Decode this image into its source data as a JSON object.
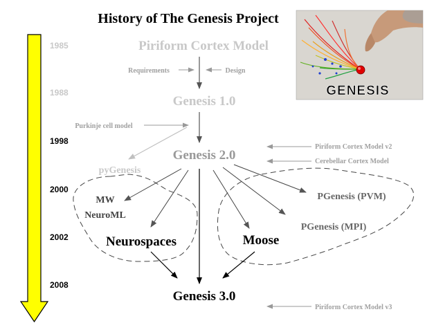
{
  "title": "History of The Genesis Project",
  "years": [
    "1985",
    "1988",
    "1998",
    "2000",
    "2002",
    "2008"
  ],
  "nodes": {
    "piriform_cortex_model": "Piriform Cortex Model",
    "genesis_1": "Genesis 1.0",
    "genesis_2": "Genesis 2.0",
    "pygenesis": "pyGenesis",
    "mw": "MW",
    "neuroml": "NeuroML",
    "neurospaces": "Neurospaces",
    "moose": "Moose",
    "pgenesis_pvm": "PGenesis (PVM)",
    "pgenesis_mpi": "PGenesis (MPI)",
    "genesis_3": "Genesis 3.0"
  },
  "annotations": {
    "requirements": "Requirements",
    "design": "Design",
    "purkinje_cell_model": "Purkinje cell model",
    "piriform_cortex_model_v2": "Piriform Cortex Model v2",
    "cerebellar_cortex_model": "Cerebellar Cortex Model",
    "piriform_cortex_model_v3": "Piriform Cortex Model v3"
  },
  "logo": {
    "text": "GENESIS"
  },
  "colors": {
    "timeline_arrow": "#ffff00",
    "faded_text": "#c8c8c8",
    "annotation_text": "#a0a0a0",
    "ink": "#000000",
    "logo_bg": "#dcdcdc"
  }
}
